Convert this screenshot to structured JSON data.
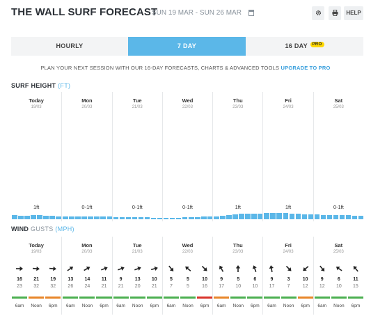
{
  "header": {
    "title": "THE WALL SURF FORECAST",
    "date_range": "SUN 19 MAR - SUN 26 MAR",
    "help_label": "HELP",
    "icons": [
      "calendar-icon",
      "gear-icon",
      "print-icon"
    ]
  },
  "tabs": [
    {
      "label": "HOURLY",
      "active": false
    },
    {
      "label": "7 DAY",
      "active": true
    },
    {
      "label": "16 DAY",
      "active": false,
      "badge": "PRO"
    }
  ],
  "promo": {
    "text": "PLAN YOUR NEXT SESSION WITH OUR 16-DAY FORECASTS, CHARTS & ADVANCED TOOLS",
    "link": "UPGRADE TO PRO"
  },
  "colors": {
    "accent": "#5bb7e8",
    "wind_good": "#4caf50",
    "wind_moderate": "#e8862a",
    "wind_poor": "#d9342b",
    "pro_badge": "#ffd800"
  },
  "surf": {
    "title": "SURF HEIGHT",
    "unit": "(FT)",
    "days": [
      {
        "name": "Today",
        "date": "19/03",
        "height": "1ft",
        "bars": [
          0.7,
          0.6,
          0.6,
          0.7,
          0.65,
          0.6,
          0.55,
          0.5
        ]
      },
      {
        "name": "Mon",
        "date": "20/03",
        "height": "0-1ft",
        "bars": [
          0.5,
          0.45,
          0.45,
          0.45,
          0.4,
          0.4,
          0.4,
          0.4
        ]
      },
      {
        "name": "Tue",
        "date": "21/03",
        "height": "0-1ft",
        "bars": [
          0.35,
          0.35,
          0.3,
          0.3,
          0.3,
          0.3,
          0.25,
          0.2
        ]
      },
      {
        "name": "Wed",
        "date": "22/03",
        "height": "0-1ft",
        "bars": [
          0.2,
          0.2,
          0.25,
          0.3,
          0.35,
          0.35,
          0.4,
          0.45
        ]
      },
      {
        "name": "Thu",
        "date": "23/03",
        "height": "1ft",
        "bars": [
          0.5,
          0.6,
          0.7,
          0.8,
          0.85,
          0.85,
          0.85,
          0.85
        ]
      },
      {
        "name": "Fri",
        "date": "24/03",
        "height": "1ft",
        "bars": [
          0.95,
          1.0,
          1.0,
          0.95,
          0.9,
          0.85,
          0.8,
          0.8
        ]
      },
      {
        "name": "Sat",
        "date": "25/03",
        "height": "0-1ft",
        "bars": [
          0.75,
          0.7,
          0.7,
          0.7,
          0.65,
          0.65,
          0.6,
          0.6
        ]
      }
    ]
  },
  "wind": {
    "title": "WIND",
    "subtitle": "GUSTS",
    "unit": "(MPH)",
    "days": [
      {
        "name": "Today",
        "date": "19/03",
        "slots": [
          {
            "time": "6am",
            "speed": "16",
            "gust": "23",
            "dir": 0,
            "rating": "good"
          },
          {
            "time": "Noon",
            "speed": "21",
            "gust": "32",
            "dir": 5,
            "rating": "moderate"
          },
          {
            "time": "6pm",
            "speed": "19",
            "gust": "32",
            "dir": 5,
            "rating": "moderate"
          }
        ]
      },
      {
        "name": "Mon",
        "date": "20/03",
        "slots": [
          {
            "time": "6am",
            "speed": "13",
            "gust": "26",
            "dir": -35,
            "rating": "good"
          },
          {
            "time": "Noon",
            "speed": "14",
            "gust": "24",
            "dir": -30,
            "rating": "good"
          },
          {
            "time": "6pm",
            "speed": "11",
            "gust": "21",
            "dir": -20,
            "rating": "good"
          }
        ]
      },
      {
        "name": "Tue",
        "date": "21/03",
        "slots": [
          {
            "time": "6am",
            "speed": "9",
            "gust": "21",
            "dir": -20,
            "rating": "good"
          },
          {
            "time": "Noon",
            "speed": "13",
            "gust": "20",
            "dir": -20,
            "rating": "good"
          },
          {
            "time": "6pm",
            "speed": "10",
            "gust": "21",
            "dir": -15,
            "rating": "good"
          }
        ]
      },
      {
        "name": "Wed",
        "date": "22/03",
        "slots": [
          {
            "time": "6am",
            "speed": "5",
            "gust": "7",
            "dir": 50,
            "rating": "good"
          },
          {
            "time": "Noon",
            "speed": "5",
            "gust": "5",
            "dir": -140,
            "rating": "good"
          },
          {
            "time": "6pm",
            "speed": "10",
            "gust": "16",
            "dir": 45,
            "rating": "poor"
          }
        ]
      },
      {
        "name": "Thu",
        "date": "23/03",
        "slots": [
          {
            "time": "6am",
            "speed": "9",
            "gust": "17",
            "dir": -120,
            "rating": "moderate"
          },
          {
            "time": "Noon",
            "speed": "5",
            "gust": "10",
            "dir": -90,
            "rating": "good"
          },
          {
            "time": "6pm",
            "speed": "6",
            "gust": "10",
            "dir": -110,
            "rating": "good"
          }
        ]
      },
      {
        "name": "Fri",
        "date": "24/03",
        "slots": [
          {
            "time": "6am",
            "speed": "9",
            "gust": "17",
            "dir": -100,
            "rating": "good"
          },
          {
            "time": "Noon",
            "speed": "3",
            "gust": "7",
            "dir": 45,
            "rating": "good"
          },
          {
            "time": "6pm",
            "speed": "10",
            "gust": "12",
            "dir": 140,
            "rating": "moderate"
          }
        ]
      },
      {
        "name": "Sat",
        "date": "25/03",
        "slots": [
          {
            "time": "6am",
            "speed": "9",
            "gust": "12",
            "dir": 50,
            "rating": "good"
          },
          {
            "time": "Noon",
            "speed": "6",
            "gust": "10",
            "dir": -145,
            "rating": "good"
          },
          {
            "time": "6pm",
            "speed": "11",
            "gust": "15",
            "dir": -130,
            "rating": "good"
          }
        ]
      }
    ]
  }
}
